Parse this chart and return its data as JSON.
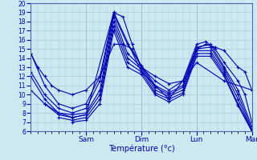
{
  "xlabel": "Température (°c)",
  "xlim": [
    0,
    96
  ],
  "ylim": [
    6,
    20
  ],
  "yticks": [
    6,
    7,
    8,
    9,
    10,
    11,
    12,
    13,
    14,
    15,
    16,
    17,
    18,
    19,
    20
  ],
  "xtick_positions": [
    24,
    48,
    72,
    96
  ],
  "xtick_labels": [
    "Sam",
    "Dim",
    "Lun",
    "Mar"
  ],
  "bg_color": "#cce8f0",
  "line_color": "#0000bb",
  "grid_color": "#aaccdd",
  "series": [
    {
      "start_x": 0,
      "points": [
        [
          0,
          14.5
        ],
        [
          3,
          13.0
        ],
        [
          6,
          12.0
        ],
        [
          9,
          11.0
        ],
        [
          12,
          10.5
        ],
        [
          18,
          10.0
        ],
        [
          24,
          10.5
        ],
        [
          30,
          12.0
        ],
        [
          36,
          15.5
        ],
        [
          40,
          15.5
        ],
        [
          44,
          15.0
        ],
        [
          48,
          13.0
        ],
        [
          54,
          12.0
        ],
        [
          60,
          11.2
        ],
        [
          66,
          11.5
        ],
        [
          72,
          15.0
        ],
        [
          76,
          15.5
        ],
        [
          80,
          15.2
        ],
        [
          84,
          14.8
        ],
        [
          90,
          13.0
        ],
        [
          93,
          12.5
        ],
        [
          96,
          10.5
        ]
      ]
    },
    {
      "start_x": 0,
      "points": [
        [
          0,
          14.5
        ],
        [
          6,
          11.0
        ],
        [
          12,
          9.0
        ],
        [
          18,
          8.5
        ],
        [
          24,
          9.0
        ],
        [
          30,
          12.0
        ],
        [
          36,
          19.0
        ],
        [
          40,
          18.5
        ],
        [
          44,
          15.5
        ],
        [
          48,
          13.0
        ],
        [
          54,
          11.5
        ],
        [
          60,
          10.5
        ],
        [
          66,
          11.5
        ],
        [
          72,
          15.5
        ],
        [
          76,
          15.8
        ],
        [
          80,
          15.0
        ],
        [
          84,
          13.5
        ],
        [
          90,
          11.5
        ],
        [
          93,
          10.0
        ],
        [
          96,
          7.0
        ]
      ]
    },
    {
      "start_x": 0,
      "points": [
        [
          0,
          12.5
        ],
        [
          6,
          10.0
        ],
        [
          12,
          8.5
        ],
        [
          18,
          8.0
        ],
        [
          24,
          8.5
        ],
        [
          30,
          11.5
        ],
        [
          36,
          18.8
        ],
        [
          42,
          15.5
        ],
        [
          48,
          13.2
        ],
        [
          54,
          11.0
        ],
        [
          60,
          10.2
        ],
        [
          66,
          11.0
        ],
        [
          72,
          15.2
        ],
        [
          78,
          15.5
        ],
        [
          84,
          13.0
        ],
        [
          90,
          10.5
        ],
        [
          96,
          6.5
        ]
      ]
    },
    {
      "start_x": 0,
      "points": [
        [
          0,
          12.0
        ],
        [
          6,
          9.5
        ],
        [
          12,
          8.0
        ],
        [
          18,
          7.8
        ],
        [
          24,
          8.0
        ],
        [
          30,
          10.5
        ],
        [
          36,
          18.5
        ],
        [
          42,
          14.5
        ],
        [
          48,
          13.0
        ],
        [
          54,
          10.8
        ],
        [
          60,
          10.0
        ],
        [
          66,
          10.8
        ],
        [
          72,
          15.0
        ],
        [
          78,
          15.2
        ],
        [
          84,
          12.8
        ],
        [
          90,
          10.0
        ],
        [
          96,
          6.2
        ]
      ]
    },
    {
      "start_x": 6,
      "points": [
        [
          6,
          9.0
        ],
        [
          12,
          7.8
        ],
        [
          18,
          7.5
        ],
        [
          24,
          7.8
        ],
        [
          30,
          10.0
        ],
        [
          36,
          18.0
        ],
        [
          42,
          14.0
        ],
        [
          48,
          12.8
        ],
        [
          54,
          10.5
        ],
        [
          60,
          9.8
        ],
        [
          66,
          10.5
        ],
        [
          72,
          14.8
        ],
        [
          78,
          14.8
        ],
        [
          84,
          12.5
        ],
        [
          90,
          9.5
        ],
        [
          96,
          6.0
        ]
      ]
    },
    {
      "start_x": 12,
      "points": [
        [
          12,
          7.5
        ],
        [
          18,
          7.2
        ],
        [
          24,
          7.5
        ],
        [
          30,
          9.5
        ],
        [
          36,
          17.5
        ],
        [
          42,
          13.5
        ],
        [
          48,
          12.5
        ],
        [
          54,
          10.2
        ],
        [
          60,
          9.5
        ],
        [
          66,
          10.2
        ],
        [
          72,
          14.5
        ],
        [
          78,
          14.5
        ],
        [
          84,
          12.2
        ],
        [
          90,
          9.0
        ],
        [
          96,
          6.0
        ]
      ]
    },
    {
      "start_x": 18,
      "points": [
        [
          18,
          7.0
        ],
        [
          24,
          7.2
        ],
        [
          30,
          9.0
        ],
        [
          36,
          17.0
        ],
        [
          42,
          13.0
        ],
        [
          48,
          12.2
        ],
        [
          54,
          10.0
        ],
        [
          60,
          9.2
        ],
        [
          66,
          10.0
        ],
        [
          72,
          14.2
        ],
        [
          78,
          14.2
        ],
        [
          84,
          12.0
        ],
        [
          90,
          8.8
        ],
        [
          96,
          6.0
        ]
      ]
    },
    {
      "start_x": 0,
      "points": [
        [
          0,
          10.5
        ],
        [
          6,
          9.0
        ],
        [
          12,
          8.0
        ],
        [
          18,
          7.5
        ],
        [
          24,
          7.8
        ],
        [
          36,
          19.0
        ],
        [
          48,
          12.5
        ],
        [
          60,
          9.5
        ],
        [
          72,
          13.5
        ],
        [
          84,
          11.5
        ],
        [
          96,
          10.5
        ]
      ]
    }
  ]
}
